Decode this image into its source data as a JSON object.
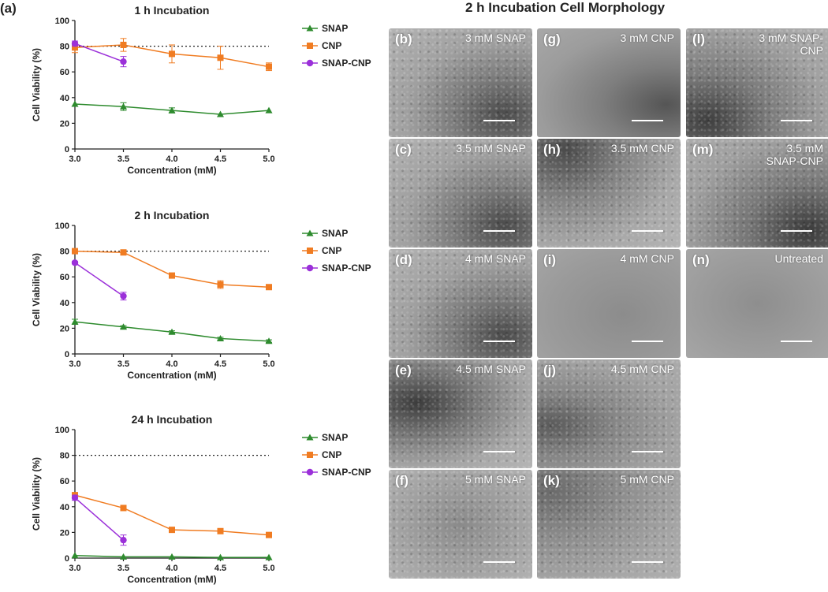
{
  "panel_a_label": "(a)",
  "chart_data": [
    {
      "type": "line",
      "title": "1 h Incubation",
      "xlabel": "Concentration (mM)",
      "ylabel": "Cell Viability (%)",
      "xlim": [
        3.0,
        5.0
      ],
      "ylim": [
        0,
        100
      ],
      "xticks": [
        "3.0",
        "3.5",
        "4.0",
        "4.5",
        "5.0"
      ],
      "yticks": [
        "0",
        "20",
        "40",
        "60",
        "80",
        "100"
      ],
      "reference_line": 80,
      "series": [
        {
          "name": "SNAP",
          "color": "#2e8b2e",
          "marker": "triangle",
          "x": [
            3.0,
            3.5,
            4.0,
            4.5,
            5.0
          ],
          "y": [
            35,
            33,
            30,
            27,
            30
          ],
          "err": [
            0,
            3,
            2,
            0,
            0
          ]
        },
        {
          "name": "CNP",
          "color": "#f07c22",
          "marker": "square",
          "x": [
            3.0,
            3.5,
            4.0,
            4.5,
            5.0
          ],
          "y": [
            79,
            81,
            74,
            71,
            64
          ],
          "err": [
            4,
            5,
            7,
            9,
            3
          ]
        },
        {
          "name": "SNAP-CNP",
          "color": "#9b30d9",
          "marker": "circle",
          "x": [
            3.0,
            3.5
          ],
          "y": [
            82,
            68
          ],
          "err": [
            2,
            4
          ]
        }
      ]
    },
    {
      "type": "line",
      "title": "2 h Incubation",
      "xlabel": "Concentration (mM)",
      "ylabel": "Cell Viability (%)",
      "xlim": [
        3.0,
        5.0
      ],
      "ylim": [
        0,
        100
      ],
      "xticks": [
        "3.0",
        "3.5",
        "4.0",
        "4.5",
        "5.0"
      ],
      "yticks": [
        "0",
        "20",
        "40",
        "60",
        "80",
        "100"
      ],
      "reference_line": 80,
      "series": [
        {
          "name": "SNAP",
          "color": "#2e8b2e",
          "marker": "triangle",
          "x": [
            3.0,
            3.5,
            4.0,
            4.5,
            5.0
          ],
          "y": [
            25,
            21,
            17,
            12,
            10
          ],
          "err": [
            2,
            1,
            1,
            1,
            1
          ]
        },
        {
          "name": "CNP",
          "color": "#f07c22",
          "marker": "square",
          "x": [
            3.0,
            3.5,
            4.0,
            4.5,
            5.0
          ],
          "y": [
            80,
            79,
            61,
            54,
            52
          ],
          "err": [
            1,
            1,
            1,
            3,
            1
          ]
        },
        {
          "name": "SNAP-CNP",
          "color": "#9b30d9",
          "marker": "circle",
          "x": [
            3.0,
            3.5
          ],
          "y": [
            71,
            45
          ],
          "err": [
            1,
            3
          ]
        }
      ]
    },
    {
      "type": "line",
      "title": "24 h Incubation",
      "xlabel": "Concentration (mM)",
      "ylabel": "Cell Viability (%)",
      "xlim": [
        3.0,
        5.0
      ],
      "ylim": [
        0,
        100
      ],
      "xticks": [
        "3.0",
        "3.5",
        "4.0",
        "4.5",
        "5.0"
      ],
      "yticks": [
        "0",
        "20",
        "40",
        "60",
        "80",
        "100"
      ],
      "reference_line": 80,
      "series": [
        {
          "name": "SNAP",
          "color": "#2e8b2e",
          "marker": "triangle",
          "x": [
            3.0,
            3.5,
            4.0,
            4.5,
            5.0
          ],
          "y": [
            2,
            1,
            1,
            0.5,
            0.5
          ],
          "err": [
            0,
            0,
            0,
            0,
            0
          ]
        },
        {
          "name": "CNP",
          "color": "#f07c22",
          "marker": "square",
          "x": [
            3.0,
            3.5,
            4.0,
            4.5,
            5.0
          ],
          "y": [
            49,
            39,
            22,
            21,
            18
          ],
          "err": [
            2,
            2,
            1,
            1,
            1
          ]
        },
        {
          "name": "SNAP-CNP",
          "color": "#9b30d9",
          "marker": "circle",
          "x": [
            3.0,
            3.5
          ],
          "y": [
            47,
            14
          ],
          "err": [
            2,
            4
          ]
        }
      ]
    }
  ],
  "morphology": {
    "title": "2 h Incubation Cell Morphology",
    "panels": [
      {
        "label": "(b)",
        "caption": "3 mM SNAP"
      },
      {
        "label": "(c)",
        "caption": "3.5 mM SNAP"
      },
      {
        "label": "(d)",
        "caption": "4 mM SNAP"
      },
      {
        "label": "(e)",
        "caption": "4.5 mM SNAP"
      },
      {
        "label": "(f)",
        "caption": "5 mM SNAP"
      },
      {
        "label": "(g)",
        "caption": "3 mM CNP"
      },
      {
        "label": "(h)",
        "caption": "3.5 mM CNP"
      },
      {
        "label": "(i)",
        "caption": "4 mM CNP"
      },
      {
        "label": "(j)",
        "caption": "4.5 mM CNP"
      },
      {
        "label": "(k)",
        "caption": "5 mM CNP"
      },
      {
        "label": "(l)",
        "caption": "3 mM SNAP-CNP"
      },
      {
        "label": "(m)",
        "caption": "3.5 mM SNAP-CNP"
      },
      {
        "label": "(n)",
        "caption": "Untreated"
      }
    ]
  }
}
